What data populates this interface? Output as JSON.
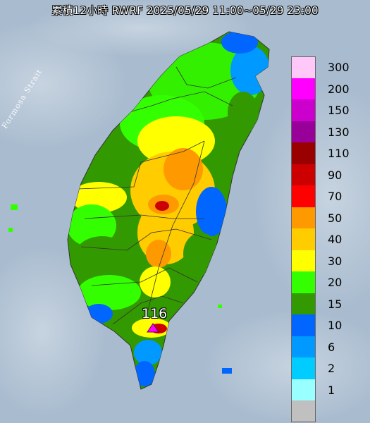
{
  "title": "累積12小時 RWRF 2025/05/29 11:00~05/29 23:00",
  "strait_label": "Formosa Strait",
  "legend": [
    {
      "label": "300",
      "color": "#ffc8f8"
    },
    {
      "label": "200",
      "color": "#ff00ff"
    },
    {
      "label": "150",
      "color": "#cc00cc"
    },
    {
      "label": "130",
      "color": "#99009a"
    },
    {
      "label": "110",
      "color": "#990000"
    },
    {
      "label": "90",
      "color": "#cc0000"
    },
    {
      "label": "70",
      "color": "#ff0000"
    },
    {
      "label": "50",
      "color": "#ff9900"
    },
    {
      "label": "40",
      "color": "#ffcc00"
    },
    {
      "label": "30",
      "color": "#ffff00"
    },
    {
      "label": "20",
      "color": "#33ff00"
    },
    {
      "label": "15",
      "color": "#339900"
    },
    {
      "label": "10",
      "color": "#0066ff"
    },
    {
      "label": "6",
      "color": "#0099ff"
    },
    {
      "label": "2",
      "color": "#00ccff"
    },
    {
      "label": "1",
      "color": "#99ffff"
    },
    {
      "label": "",
      "color": "#c0c0c0"
    }
  ],
  "max_station": {
    "value": "116",
    "marker_color": "#ff00ff"
  }
}
